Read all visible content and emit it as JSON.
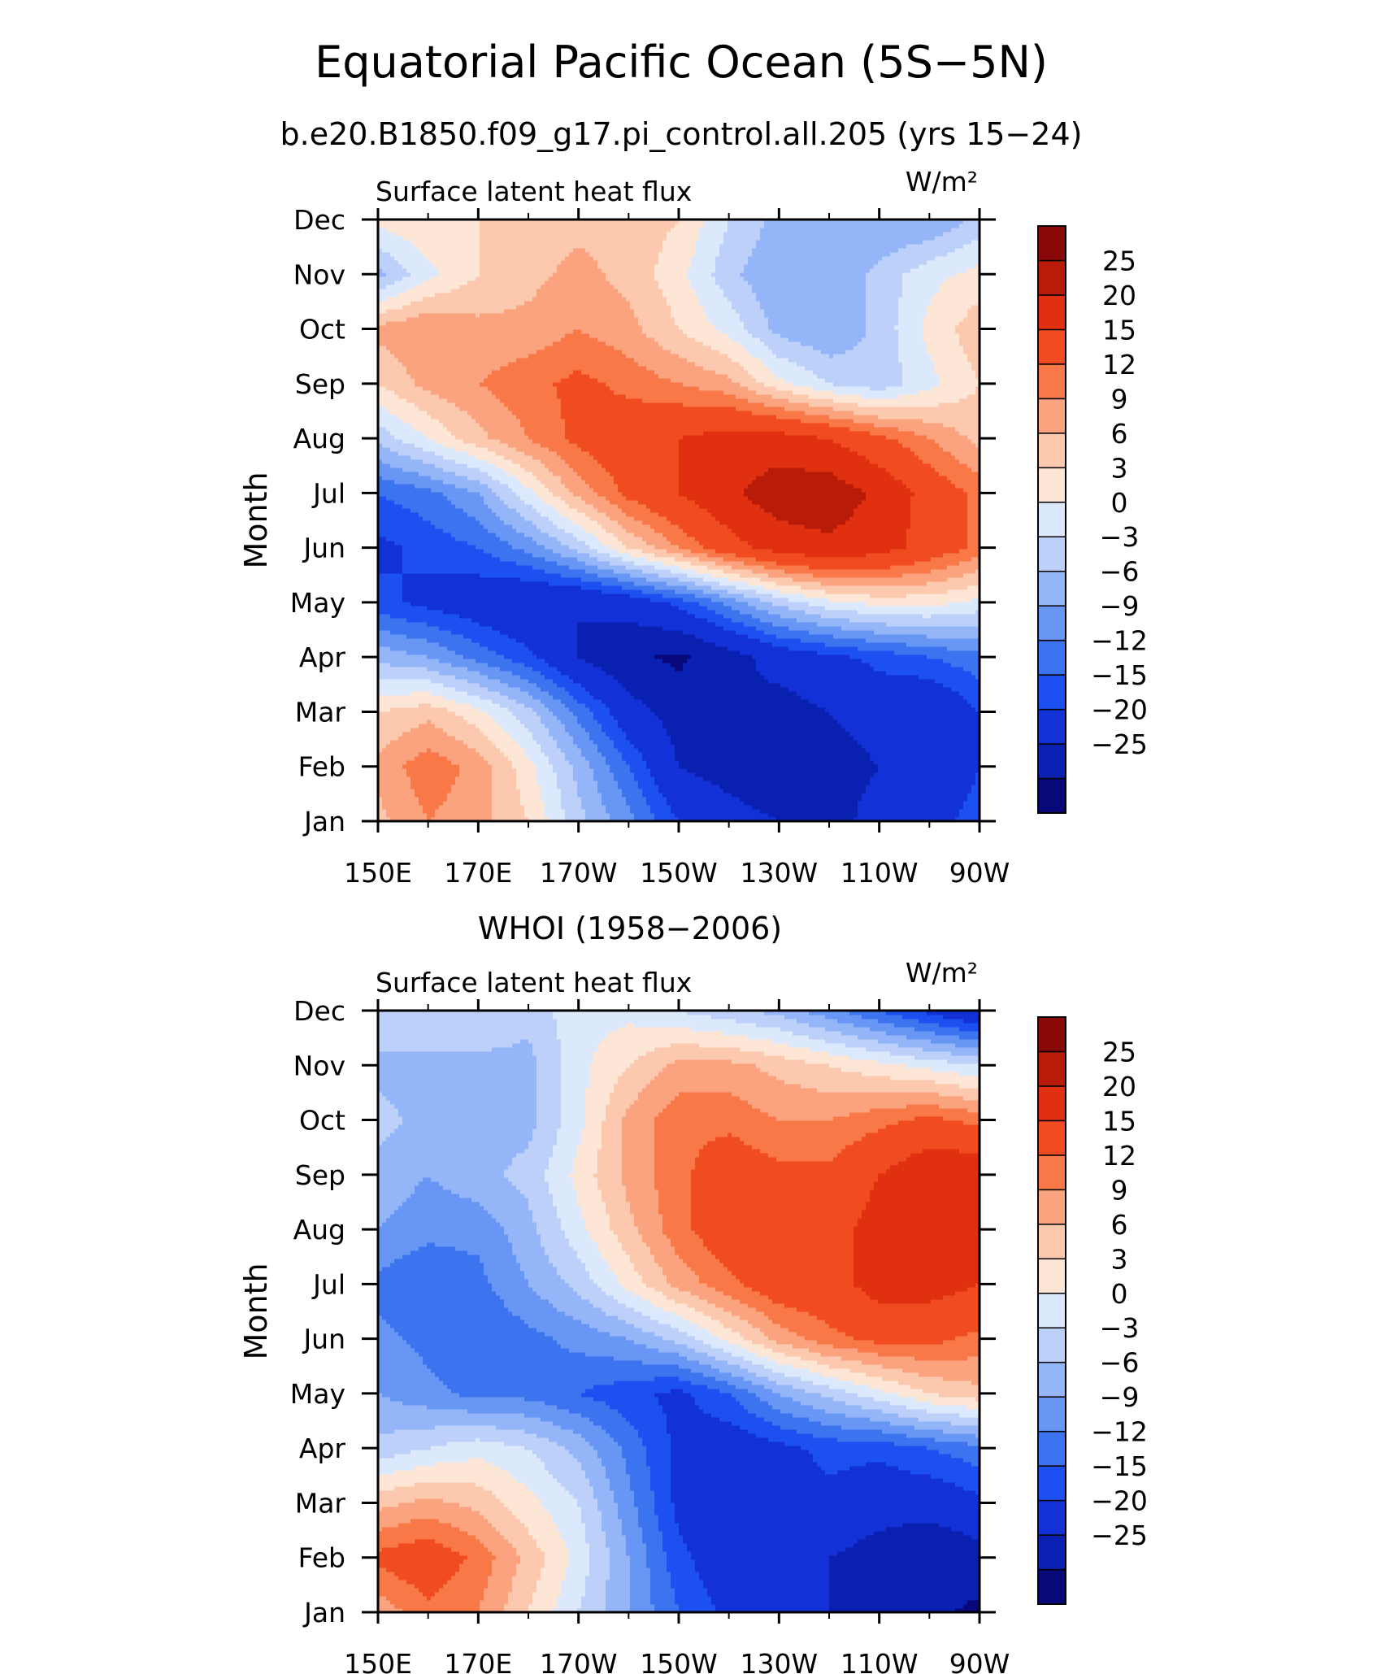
{
  "figure": {
    "title": "Equatorial Pacific Ocean (5S−5N)",
    "subtitle": "b.e20.B1850.f09_g17.pi_control.all.205 (yrs 15−24)"
  },
  "levels": [
    -25,
    -20,
    -15,
    -12,
    -9,
    -6,
    -3,
    0,
    3,
    6,
    9,
    12,
    15,
    20,
    25
  ],
  "level_labels": [
    "25",
    "20",
    "15",
    "12",
    "9",
    "6",
    "3",
    "0",
    "−3",
    "−6",
    "−9",
    "−12",
    "−15",
    "−20",
    "−25"
  ],
  "colors": [
    "#08087a",
    "#0a20b0",
    "#1232d8",
    "#1c50f0",
    "#3c74f0",
    "#6896f4",
    "#94b6f8",
    "#bcd0fa",
    "#dce8fc",
    "#fde6d6",
    "#fcc8ae",
    "#fba27e",
    "#f87848",
    "#f04c20",
    "#e03010",
    "#b81c08",
    "#8a0808"
  ],
  "chart_data": [
    {
      "type": "heatmap",
      "title": "",
      "label_left": "Surface latent heat flux",
      "label_right": "W/m²",
      "ylabel": "Month",
      "xlabel": "",
      "x": [
        150,
        160,
        170,
        180,
        190,
        200,
        210,
        220,
        230,
        240,
        250,
        260,
        270
      ],
      "x_units": "degrees east",
      "x_ticks": [
        "150E",
        "170E",
        "170W",
        "150W",
        "130W",
        "110W",
        "90W"
      ],
      "y_ticks": [
        "Jan",
        "Feb",
        "Mar",
        "Apr",
        "May",
        "Jun",
        "Jul",
        "Aug",
        "Sep",
        "Oct",
        "Nov",
        "Dec"
      ],
      "legend": "right colorbar",
      "grid": false,
      "values": [
        [
          8,
          12,
          10,
          6,
          -2,
          -8,
          -15,
          -18,
          -20,
          -22,
          -18,
          -16,
          -14
        ],
        [
          10,
          14,
          11,
          4,
          -4,
          -12,
          -20,
          -22,
          -24,
          -22,
          -20,
          -18,
          -15
        ],
        [
          6,
          8,
          4,
          -2,
          -10,
          -18,
          -22,
          -20,
          -22,
          -20,
          -18,
          -20,
          -15
        ],
        [
          -4,
          -6,
          -10,
          -14,
          -20,
          -24,
          -26,
          -22,
          -18,
          -16,
          -14,
          -12,
          -10
        ],
        [
          -14,
          -16,
          -18,
          -20,
          -20,
          -18,
          -14,
          -8,
          -2,
          2,
          4,
          4,
          2
        ],
        [
          -16,
          -14,
          -12,
          -8,
          -2,
          6,
          12,
          18,
          22,
          24,
          22,
          18,
          14
        ],
        [
          -12,
          -10,
          -6,
          2,
          10,
          16,
          20,
          24,
          28,
          28,
          24,
          18,
          14
        ],
        [
          -2,
          3,
          8,
          12,
          16,
          18,
          20,
          22,
          22,
          20,
          16,
          12,
          8
        ],
        [
          6,
          10,
          12,
          14,
          16,
          14,
          12,
          10,
          4,
          0,
          -2,
          2,
          6
        ],
        [
          10,
          12,
          10,
          10,
          12,
          10,
          6,
          2,
          -4,
          -6,
          -2,
          4,
          8
        ],
        [
          -4,
          2,
          6,
          8,
          10,
          8,
          4,
          -2,
          -6,
          -6,
          -2,
          2,
          4
        ],
        [
          4,
          6,
          6,
          8,
          8,
          8,
          6,
          0,
          -4,
          -4,
          -6,
          -6,
          -2
        ]
      ]
    },
    {
      "type": "heatmap",
      "title": "WHOI (1958−2006)",
      "label_left": "Surface latent heat flux",
      "label_right": "W/m²",
      "ylabel": "Month",
      "xlabel": "",
      "x": [
        150,
        160,
        170,
        180,
        190,
        200,
        210,
        220,
        230,
        240,
        250,
        260,
        270
      ],
      "x_units": "degrees east",
      "x_ticks": [
        "150E",
        "170E",
        "170W",
        "150W",
        "130W",
        "110W",
        "90W"
      ],
      "y_ticks": [
        "Jan",
        "Feb",
        "Mar",
        "Apr",
        "May",
        "Jun",
        "Jul",
        "Aug",
        "Sep",
        "Oct",
        "Nov",
        "Dec"
      ],
      "legend": "right colorbar",
      "grid": false,
      "values": [
        [
          10,
          14,
          12,
          6,
          0,
          -6,
          -12,
          -16,
          -18,
          -20,
          -22,
          -24,
          -26
        ],
        [
          16,
          18,
          14,
          8,
          2,
          -6,
          -14,
          -18,
          -20,
          -20,
          -22,
          -24,
          -22
        ],
        [
          8,
          10,
          8,
          4,
          0,
          -8,
          -16,
          -18,
          -18,
          -16,
          -18,
          -18,
          -16
        ],
        [
          -2,
          0,
          2,
          0,
          -4,
          -10,
          -16,
          -18,
          -16,
          -14,
          -14,
          -12,
          -10
        ],
        [
          -6,
          -8,
          -10,
          -10,
          -12,
          -14,
          -16,
          -12,
          -6,
          -2,
          2,
          6,
          8
        ],
        [
          -8,
          -10,
          -12,
          -10,
          -8,
          -6,
          -2,
          4,
          10,
          14,
          16,
          16,
          14
        ],
        [
          -10,
          -12,
          -10,
          -6,
          -2,
          4,
          10,
          14,
          18,
          18,
          22,
          22,
          20
        ],
        [
          -6,
          -8,
          -8,
          -4,
          2,
          8,
          14,
          18,
          20,
          18,
          22,
          24,
          22
        ],
        [
          -4,
          -6,
          -4,
          -2,
          4,
          10,
          14,
          18,
          16,
          16,
          20,
          24,
          24
        ],
        [
          -2,
          -4,
          -4,
          -4,
          2,
          10,
          14,
          14,
          12,
          12,
          14,
          16,
          14
        ],
        [
          -4,
          -4,
          -4,
          -4,
          2,
          6,
          10,
          10,
          8,
          6,
          4,
          2,
          0
        ],
        [
          0,
          0,
          0,
          -2,
          2,
          2,
          0,
          -2,
          -4,
          -8,
          -12,
          -16,
          -20
        ]
      ]
    }
  ]
}
